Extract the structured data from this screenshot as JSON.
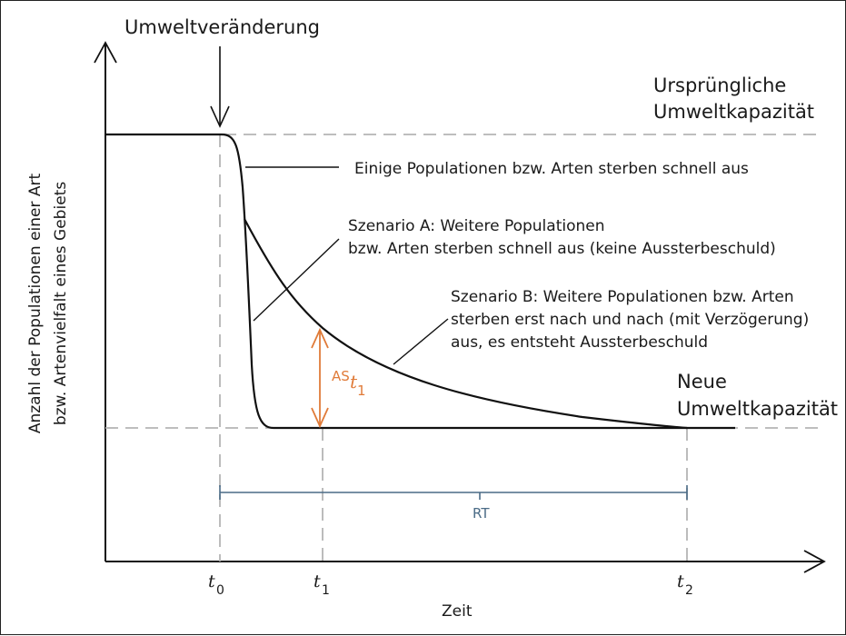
{
  "labels": {
    "event": "Umweltveränderung",
    "orig_capacity_l1": "Ursprüngliche",
    "orig_capacity_l2": "Umweltkapazität",
    "new_capacity_l1": "Neue",
    "new_capacity_l2": "Umweltkapazität",
    "fast_extinction": "Einige Populationen bzw. Arten sterben schnell aus",
    "scenario_a_l1": "Szenario A: Weitere Populationen",
    "scenario_a_l2": "bzw. Arten sterben schnell aus (keine Aussterbeschuld)",
    "scenario_b_l1": "Szenario B: Weitere Populationen bzw. Arten",
    "scenario_b_l2": "sterben erst nach und nach (mit Verzögerung)",
    "scenario_b_l3": "aus, es entsteht Aussterbeschuld",
    "as_main": "AS",
    "as_sub_t": "t",
    "as_sub_1": "1",
    "rt": "RT",
    "xlabel": "Zeit",
    "ylabel_l1": "Anzahl der Populationen einer Art",
    "ylabel_l2": "bzw. Artenvielfalt eines Gebiets",
    "t0_t": "t",
    "t0_sub": "0",
    "t1_t": "t",
    "t1_sub": "1",
    "t2_t": "t",
    "t2_sub": "2"
  },
  "colors": {
    "curve": "#111111",
    "guide": "#b5b5b5",
    "as_arrow": "#e07b39",
    "rt_bracket": "#4a6b86"
  }
}
